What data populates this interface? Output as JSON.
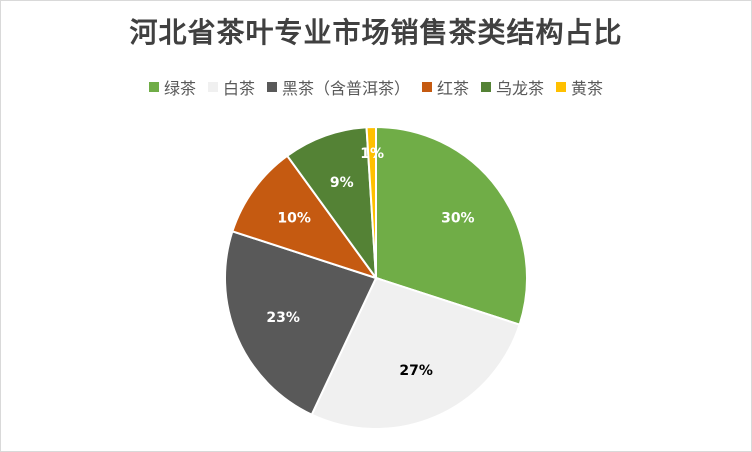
{
  "chart_data": {
    "type": "pie",
    "title": "河北省茶叶专业市场销售茶类结构占比",
    "legend_position": "top",
    "slices": [
      {
        "label": "绿茶",
        "value": 30,
        "display": "30%",
        "color": "#70ad47",
        "label_color": "#ffffff"
      },
      {
        "label": "白茶",
        "value": 27,
        "display": "27%",
        "color": "#f0f0f0",
        "label_color": "#000000"
      },
      {
        "label": "黑茶（含普洱茶）",
        "value": 23,
        "display": "23%",
        "color": "#595959",
        "label_color": "#ffffff"
      },
      {
        "label": "红茶",
        "value": 10,
        "display": "10%",
        "color": "#c55a11",
        "label_color": "#ffffff"
      },
      {
        "label": "乌龙茶",
        "value": 9,
        "display": "9%",
        "color": "#548235",
        "label_color": "#ffffff"
      },
      {
        "label": "黄茶",
        "value": 1,
        "display": "1%",
        "color": "#ffc000",
        "label_color": "#ffffff"
      }
    ]
  }
}
